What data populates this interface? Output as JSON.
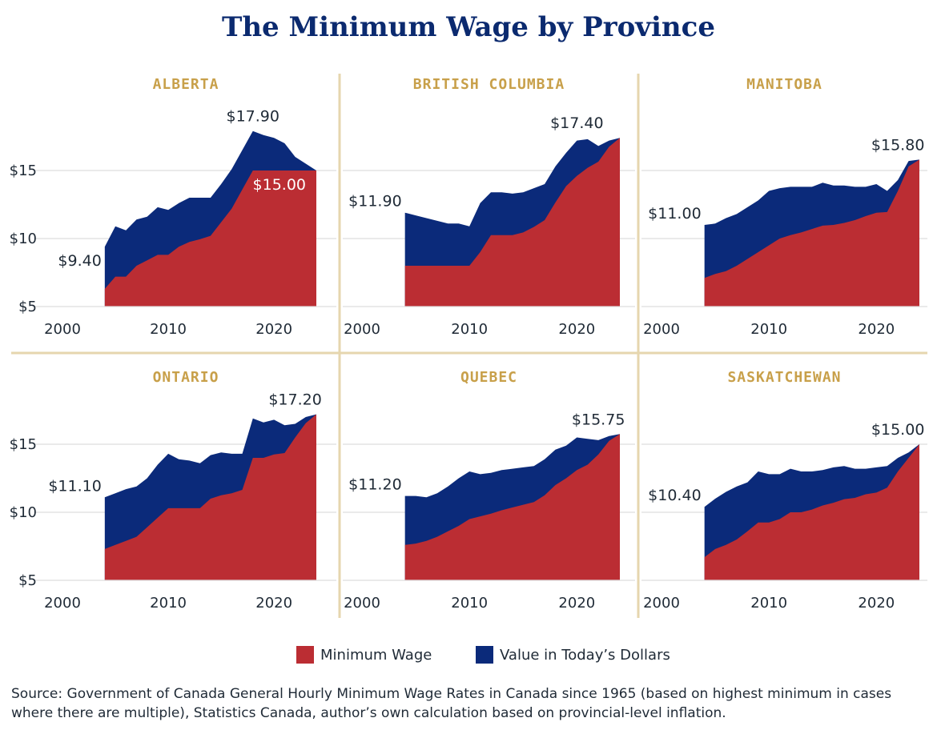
{
  "title": "The Minimum Wage by Province",
  "colors": {
    "minimum_wage": "#bb2d33",
    "todays_dollars": "#0b2a7a",
    "title": "#0b2a6f",
    "province_label": "#c8a04a",
    "divider": "#e6d6ae",
    "gridline": "#dddddd"
  },
  "legend": [
    {
      "label": "Minimum Wage",
      "color": "#bb2d33"
    },
    {
      "label": "Value in Today’s Dollars",
      "color": "#0b2a7a"
    }
  ],
  "source": "Source: Government of Canada General Hourly Minimum Wage Rates in Canada since 1965 (based on highest minimum in cases where there are multiple), Statistics Canada, author’s own calculation based on provincial-level inflation.",
  "chart_data": [
    {
      "type": "area",
      "title": "ALBERTA",
      "x_ticks": [
        "2000",
        "2010",
        "2020"
      ],
      "y_ticks": [
        "$5",
        "$10",
        "$15"
      ],
      "xlim": [
        2000,
        2024
      ],
      "ylim": [
        5,
        18
      ],
      "grid": true,
      "annotations": [
        {
          "text": "$9.40",
          "series": "Value in Today’s Dollars",
          "x": 2004,
          "y": 9.4,
          "anchor": "left"
        },
        {
          "text": "$17.90",
          "series": "Value in Today’s Dollars",
          "x": 2018,
          "y": 17.9,
          "anchor": "above"
        },
        {
          "text": "$15.00",
          "series": "Minimum Wage",
          "x": 2020.5,
          "y": 15,
          "anchor": "inside"
        }
      ],
      "series": [
        {
          "name": "Minimum Wage",
          "x": [
            2004,
            2005,
            2006,
            2007,
            2008,
            2009,
            2010,
            2011,
            2012,
            2013,
            2014,
            2015,
            2016,
            2017,
            2018,
            2019,
            2020,
            2021,
            2022,
            2023,
            2024
          ],
          "values": [
            6.3,
            7.2,
            7.2,
            8.0,
            8.4,
            8.8,
            8.8,
            9.4,
            9.75,
            9.95,
            10.2,
            11.2,
            12.2,
            13.6,
            15.0,
            15.0,
            15.0,
            15.0,
            15.0,
            15.0,
            15.0
          ]
        },
        {
          "name": "Value in Today’s Dollars",
          "x": [
            2004,
            2005,
            2006,
            2007,
            2008,
            2009,
            2010,
            2011,
            2012,
            2013,
            2014,
            2015,
            2016,
            2017,
            2018,
            2019,
            2020,
            2021,
            2022,
            2023,
            2024
          ],
          "values": [
            9.4,
            10.9,
            10.6,
            11.4,
            11.6,
            12.3,
            12.1,
            12.6,
            13.0,
            13.0,
            13.0,
            14.0,
            15.1,
            16.5,
            17.9,
            17.6,
            17.4,
            17.0,
            16.0,
            15.5,
            15.0
          ]
        }
      ]
    },
    {
      "type": "area",
      "title": "BRITISH COLUMBIA",
      "x_ticks": [
        "2000",
        "2010",
        "2020"
      ],
      "y_ticks": [
        "$5",
        "$10",
        "$15"
      ],
      "xlim": [
        2000,
        2024
      ],
      "ylim": [
        5,
        18
      ],
      "grid": true,
      "annotations": [
        {
          "text": "$11.90",
          "series": "Value in Today’s Dollars",
          "x": 2004,
          "y": 11.9,
          "anchor": "left"
        },
        {
          "text": "$17.40",
          "series": "Value in Today’s Dollars",
          "x": 2020,
          "y": 17.4,
          "anchor": "above"
        }
      ],
      "series": [
        {
          "name": "Minimum Wage",
          "x": [
            2004,
            2005,
            2006,
            2007,
            2008,
            2009,
            2010,
            2011,
            2012,
            2013,
            2014,
            2015,
            2016,
            2017,
            2018,
            2019,
            2020,
            2021,
            2022,
            2023,
            2024
          ],
          "values": [
            8.0,
            8.0,
            8.0,
            8.0,
            8.0,
            8.0,
            8.0,
            9.0,
            10.25,
            10.25,
            10.25,
            10.45,
            10.85,
            11.35,
            12.65,
            13.85,
            14.6,
            15.2,
            15.65,
            16.75,
            17.4
          ]
        },
        {
          "name": "Value in Today’s Dollars",
          "x": [
            2004,
            2005,
            2006,
            2007,
            2008,
            2009,
            2010,
            2011,
            2012,
            2013,
            2014,
            2015,
            2016,
            2017,
            2018,
            2019,
            2020,
            2021,
            2022,
            2023,
            2024
          ],
          "values": [
            11.9,
            11.7,
            11.5,
            11.3,
            11.1,
            11.1,
            10.9,
            12.6,
            13.4,
            13.4,
            13.3,
            13.4,
            13.7,
            14.0,
            15.3,
            16.3,
            17.2,
            17.3,
            16.8,
            17.2,
            17.4
          ]
        }
      ]
    },
    {
      "type": "area",
      "title": "MANITOBA",
      "x_ticks": [
        "2000",
        "2010",
        "2020"
      ],
      "y_ticks": [
        "$5",
        "$10",
        "$15"
      ],
      "xlim": [
        2000,
        2024
      ],
      "ylim": [
        5,
        18
      ],
      "grid": true,
      "annotations": [
        {
          "text": "$11.00",
          "series": "Value in Today’s Dollars",
          "x": 2004,
          "y": 11.0,
          "anchor": "left"
        },
        {
          "text": "$15.80",
          "series": "Value in Today’s Dollars",
          "x": 2022,
          "y": 15.8,
          "anchor": "above"
        }
      ],
      "series": [
        {
          "name": "Minimum Wage",
          "x": [
            2004,
            2005,
            2006,
            2007,
            2008,
            2009,
            2010,
            2011,
            2012,
            2013,
            2014,
            2015,
            2016,
            2017,
            2018,
            2019,
            2020,
            2021,
            2022,
            2023,
            2024
          ],
          "values": [
            7.1,
            7.4,
            7.6,
            8.0,
            8.5,
            9.0,
            9.5,
            10.0,
            10.25,
            10.45,
            10.7,
            10.95,
            11.0,
            11.15,
            11.35,
            11.65,
            11.9,
            11.95,
            13.5,
            15.3,
            15.8
          ]
        },
        {
          "name": "Value in Today’s Dollars",
          "x": [
            2004,
            2005,
            2006,
            2007,
            2008,
            2009,
            2010,
            2011,
            2012,
            2013,
            2014,
            2015,
            2016,
            2017,
            2018,
            2019,
            2020,
            2021,
            2022,
            2023,
            2024
          ],
          "values": [
            11.0,
            11.1,
            11.5,
            11.8,
            12.3,
            12.8,
            13.5,
            13.7,
            13.8,
            13.8,
            13.8,
            14.1,
            13.9,
            13.9,
            13.8,
            13.8,
            14.0,
            13.5,
            14.3,
            15.7,
            15.8
          ]
        }
      ]
    },
    {
      "type": "area",
      "title": "ONTARIO",
      "x_ticks": [
        "2000",
        "2010",
        "2020"
      ],
      "y_ticks": [
        "$5",
        "$10",
        "$15"
      ],
      "xlim": [
        2000,
        2024
      ],
      "ylim": [
        5,
        18
      ],
      "grid": true,
      "annotations": [
        {
          "text": "$11.10",
          "series": "Value in Today’s Dollars",
          "x": 2004,
          "y": 11.1,
          "anchor": "left"
        },
        {
          "text": "$17.20",
          "series": "Value in Today’s Dollars",
          "x": 2022,
          "y": 17.2,
          "anchor": "above"
        }
      ],
      "series": [
        {
          "name": "Minimum Wage",
          "x": [
            2004,
            2005,
            2006,
            2007,
            2008,
            2009,
            2010,
            2011,
            2012,
            2013,
            2014,
            2015,
            2016,
            2017,
            2018,
            2019,
            2020,
            2021,
            2022,
            2023,
            2024
          ],
          "values": [
            7.3,
            7.6,
            7.9,
            8.2,
            8.9,
            9.6,
            10.3,
            10.3,
            10.3,
            10.3,
            11.0,
            11.25,
            11.4,
            11.65,
            14.0,
            14.0,
            14.25,
            14.35,
            15.5,
            16.55,
            17.2
          ]
        },
        {
          "name": "Value in Today’s Dollars",
          "x": [
            2004,
            2005,
            2006,
            2007,
            2008,
            2009,
            2010,
            2011,
            2012,
            2013,
            2014,
            2015,
            2016,
            2017,
            2018,
            2019,
            2020,
            2021,
            2022,
            2023,
            2024
          ],
          "values": [
            11.1,
            11.4,
            11.7,
            11.9,
            12.5,
            13.5,
            14.3,
            13.9,
            13.8,
            13.6,
            14.2,
            14.4,
            14.3,
            14.3,
            16.9,
            16.6,
            16.8,
            16.4,
            16.5,
            17.0,
            17.2
          ]
        }
      ]
    },
    {
      "type": "area",
      "title": "QUEBEC",
      "x_ticks": [
        "2000",
        "2010",
        "2020"
      ],
      "y_ticks": [
        "$5",
        "$10",
        "$15"
      ],
      "xlim": [
        2000,
        2024
      ],
      "ylim": [
        5,
        18
      ],
      "grid": true,
      "annotations": [
        {
          "text": "$11.20",
          "series": "Value in Today’s Dollars",
          "x": 2004,
          "y": 11.2,
          "anchor": "left"
        },
        {
          "text": "$15.75",
          "series": "Value in Today’s Dollars",
          "x": 2022,
          "y": 15.75,
          "anchor": "above"
        }
      ],
      "series": [
        {
          "name": "Minimum Wage",
          "x": [
            2004,
            2005,
            2006,
            2007,
            2008,
            2009,
            2010,
            2011,
            2012,
            2013,
            2014,
            2015,
            2016,
            2017,
            2018,
            2019,
            2020,
            2021,
            2022,
            2023,
            2024
          ],
          "values": [
            7.6,
            7.7,
            7.9,
            8.2,
            8.6,
            9.0,
            9.5,
            9.7,
            9.9,
            10.15,
            10.35,
            10.55,
            10.75,
            11.25,
            12.0,
            12.5,
            13.1,
            13.5,
            14.25,
            15.25,
            15.75
          ]
        },
        {
          "name": "Value in Today’s Dollars",
          "x": [
            2004,
            2005,
            2006,
            2007,
            2008,
            2009,
            2010,
            2011,
            2012,
            2013,
            2014,
            2015,
            2016,
            2017,
            2018,
            2019,
            2020,
            2021,
            2022,
            2023,
            2024
          ],
          "values": [
            11.2,
            11.2,
            11.1,
            11.4,
            11.9,
            12.5,
            13.0,
            12.8,
            12.9,
            13.1,
            13.2,
            13.3,
            13.4,
            13.9,
            14.6,
            14.9,
            15.5,
            15.4,
            15.3,
            15.6,
            15.75
          ]
        }
      ]
    },
    {
      "type": "area",
      "title": "SASKATCHEWAN",
      "x_ticks": [
        "2000",
        "2010",
        "2020"
      ],
      "y_ticks": [
        "$5",
        "$10",
        "$15"
      ],
      "xlim": [
        2000,
        2024
      ],
      "ylim": [
        5,
        18
      ],
      "grid": true,
      "annotations": [
        {
          "text": "$10.40",
          "series": "Value in Today’s Dollars",
          "x": 2004,
          "y": 10.4,
          "anchor": "left"
        },
        {
          "text": "$15.00",
          "series": "Value in Today’s Dollars",
          "x": 2022,
          "y": 15.0,
          "anchor": "above"
        }
      ],
      "series": [
        {
          "name": "Minimum Wage",
          "x": [
            2004,
            2005,
            2006,
            2007,
            2008,
            2009,
            2010,
            2011,
            2012,
            2013,
            2014,
            2015,
            2016,
            2017,
            2018,
            2019,
            2020,
            2021,
            2022,
            2023,
            2024
          ],
          "values": [
            6.7,
            7.3,
            7.6,
            8.0,
            8.6,
            9.25,
            9.25,
            9.5,
            10.0,
            10.0,
            10.2,
            10.5,
            10.7,
            10.96,
            11.06,
            11.32,
            11.45,
            11.81,
            13.0,
            14.0,
            15.0
          ]
        },
        {
          "name": "Value in Today’s Dollars",
          "x": [
            2004,
            2005,
            2006,
            2007,
            2008,
            2009,
            2010,
            2011,
            2012,
            2013,
            2014,
            2015,
            2016,
            2017,
            2018,
            2019,
            2020,
            2021,
            2022,
            2023,
            2024
          ],
          "values": [
            10.4,
            11.0,
            11.5,
            11.9,
            12.2,
            13.0,
            12.8,
            12.8,
            13.2,
            13.0,
            13.0,
            13.1,
            13.3,
            13.4,
            13.2,
            13.2,
            13.3,
            13.4,
            14.0,
            14.4,
            15.0
          ]
        }
      ]
    }
  ]
}
